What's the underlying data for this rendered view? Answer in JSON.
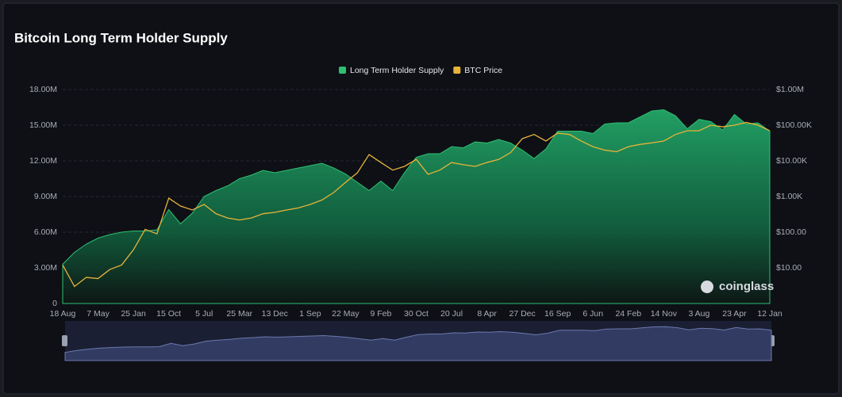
{
  "chart_data": {
    "type": "area",
    "title": "Bitcoin Long Term Holder Supply",
    "watermark": "coinglass",
    "categories": [
      "18 Aug",
      null,
      null,
      "7 May",
      null,
      null,
      "25 Jan",
      null,
      null,
      "15 Oct",
      null,
      null,
      "5 Jul",
      null,
      null,
      "25 Mar",
      null,
      null,
      "13 Dec",
      null,
      null,
      "1 Sep",
      null,
      null,
      "22 May",
      null,
      null,
      "9 Feb",
      null,
      null,
      "30 Oct",
      null,
      null,
      "20 Jul",
      null,
      null,
      "8 Apr",
      null,
      null,
      "27 Dec",
      null,
      null,
      "16 Sep",
      null,
      null,
      "6 Jun",
      null,
      null,
      "24 Feb",
      null,
      null,
      "14 Nov",
      null,
      null,
      "3 Aug",
      null,
      null,
      "23 Apr",
      null,
      null,
      "12 Jan"
    ],
    "series": [
      {
        "name": "Long Term Holder Supply",
        "type": "area",
        "color": "#2fbf71",
        "values": [
          3300000,
          4300000,
          5000000,
          5500000,
          5800000,
          6000000,
          6100000,
          6100000,
          6200000,
          7900000,
          6700000,
          7600000,
          9000000,
          9500000,
          9900000,
          10500000,
          10800000,
          11200000,
          11000000,
          11200000,
          11400000,
          11600000,
          11800000,
          11400000,
          10900000,
          10200000,
          9500000,
          10300000,
          9500000,
          11000000,
          12300000,
          12600000,
          12600000,
          13200000,
          13100000,
          13600000,
          13500000,
          13800000,
          13500000,
          12900000,
          12200000,
          13000000,
          14500000,
          14500000,
          14500000,
          14300000,
          15100000,
          15200000,
          15200000,
          15700000,
          16200000,
          16300000,
          15800000,
          14700000,
          15500000,
          15300000,
          14600000,
          15900000,
          15100000,
          15200000,
          14500000
        ]
      },
      {
        "name": "BTC Price",
        "type": "line",
        "axis": "y2",
        "color": "#e8b339",
        "values": [
          12,
          3,
          5.4,
          5,
          9,
          12,
          32,
          120,
          90,
          900,
          540,
          420,
          600,
          330,
          250,
          220,
          250,
          330,
          360,
          420,
          480,
          600,
          800,
          1300,
          2500,
          4600,
          15000,
          9000,
          5500,
          7000,
          11000,
          4200,
          5500,
          9000,
          7800,
          7000,
          9000,
          11000,
          17000,
          42000,
          55000,
          36000,
          60000,
          55000,
          36000,
          25000,
          20000,
          18000,
          25000,
          29000,
          32000,
          36000,
          55000,
          70000,
          70000,
          100000,
          90000,
          100000,
          120000,
          100000,
          70000
        ]
      }
    ],
    "ylim": [
      0,
      18000000
    ],
    "yticks": [
      0,
      {
        "value": 3000000,
        "label": "3.00M"
      },
      {
        "value": 6000000,
        "label": "6.00M"
      },
      {
        "value": 9000000,
        "label": "9.00M"
      },
      {
        "value": 12000000,
        "label": "12.00M"
      },
      {
        "value": 15000000,
        "label": "15.00M"
      },
      {
        "value": 18000000,
        "label": "18.00M"
      }
    ],
    "y2lim": [
      1,
      1000000
    ],
    "y2log": true,
    "y2ticks": [
      {
        "value": 10,
        "label": "$10.00"
      },
      {
        "value": 100,
        "label": "$100.00"
      },
      {
        "value": 1000,
        "label": "$1.00K"
      },
      {
        "value": 10000,
        "label": "$10.00K"
      },
      {
        "value": 100000,
        "label": "$100.00K"
      },
      {
        "value": 1000000,
        "label": "$1.00M"
      }
    ],
    "grid": true,
    "legend": "top"
  }
}
